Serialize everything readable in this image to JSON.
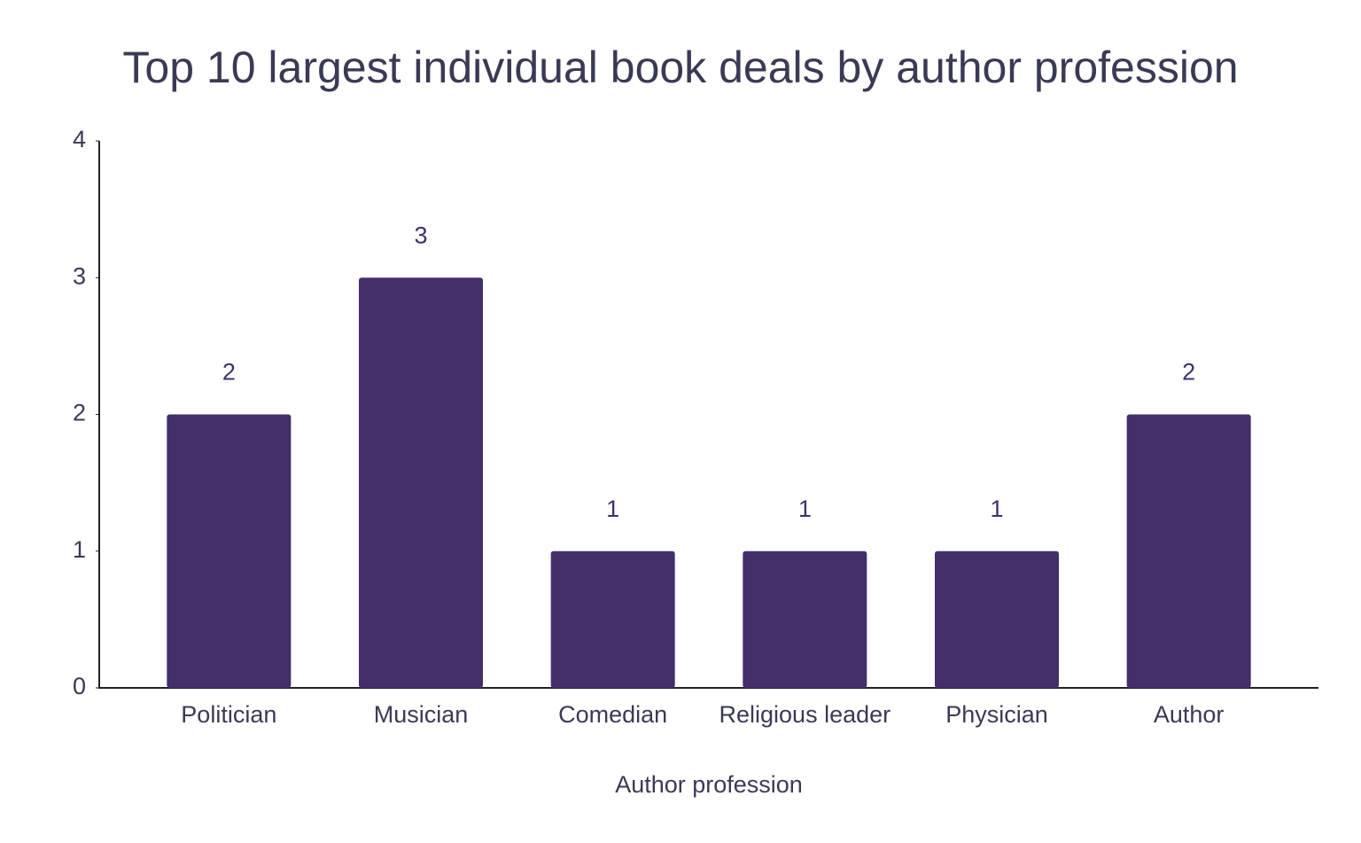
{
  "chart_data": {
    "type": "bar",
    "title": "Top 10 largest individual book deals by author profession",
    "x_label": "Author profession",
    "categories": [
      "Politician",
      "Musician",
      "Comedian",
      "Religious leader",
      "Physician",
      "Author"
    ],
    "values": [
      2,
      3,
      1,
      1,
      1,
      2
    ],
    "color": "#432f6a",
    "ylim": [
      0,
      4
    ],
    "yticks": [
      0,
      1,
      2,
      3,
      4
    ],
    "grid": false
  }
}
